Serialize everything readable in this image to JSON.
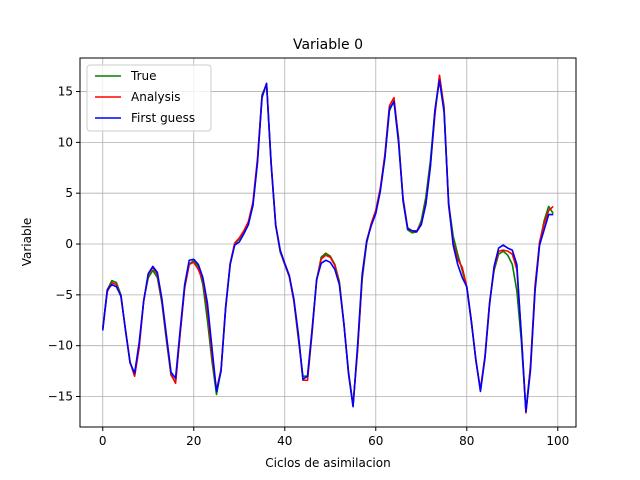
{
  "chart_data": {
    "type": "line",
    "title": "Variable 0",
    "xlabel": "Ciclos de asimilacion",
    "ylabel": "Variable",
    "xlim": [
      -5,
      104
    ],
    "ylim": [
      -18,
      18.3
    ],
    "xticks": [
      0,
      20,
      40,
      60,
      80,
      100
    ],
    "yticks": [
      -15,
      -10,
      -5,
      0,
      5,
      10,
      15
    ],
    "grid": true,
    "legend": "top-left",
    "x": [
      0,
      1,
      2,
      3,
      4,
      5,
      6,
      7,
      8,
      9,
      10,
      11,
      12,
      13,
      14,
      15,
      16,
      17,
      18,
      19,
      20,
      21,
      22,
      23,
      24,
      25,
      26,
      27,
      28,
      29,
      30,
      31,
      32,
      33,
      34,
      35,
      36,
      37,
      38,
      39,
      40,
      41,
      42,
      43,
      44,
      45,
      46,
      47,
      48,
      49,
      50,
      51,
      52,
      53,
      54,
      55,
      56,
      57,
      58,
      59,
      60,
      61,
      62,
      63,
      64,
      65,
      66,
      67,
      68,
      69,
      70,
      71,
      72,
      73,
      74,
      75,
      76,
      77,
      78,
      79,
      80,
      81,
      82,
      83,
      84,
      85,
      86,
      87,
      88,
      89,
      90,
      91,
      92,
      93,
      94,
      95,
      96,
      97,
      98,
      99
    ],
    "series": [
      {
        "name": "True",
        "color": "#008000",
        "values": [
          -8.3,
          -4.5,
          -3.6,
          -3.8,
          -5.0,
          -8.5,
          -11.6,
          -13.0,
          -10.0,
          -5.5,
          -3.3,
          -2.6,
          -3.3,
          -5.8,
          -9.5,
          -12.9,
          -13.6,
          -8.8,
          -4.3,
          -2.0,
          -1.6,
          -2.2,
          -4.0,
          -7.5,
          -11.5,
          -14.8,
          -12.4,
          -6.4,
          -2.0,
          0.0,
          0.5,
          1.2,
          2.0,
          3.8,
          8.1,
          14.7,
          15.7,
          7.8,
          1.8,
          -0.8,
          -2.0,
          -3.2,
          -5.6,
          -9.4,
          -13.0,
          -13.0,
          -8.4,
          -3.6,
          -1.3,
          -0.9,
          -1.2,
          -2.0,
          -3.7,
          -7.8,
          -12.8,
          -15.9,
          -10.4,
          -3.5,
          0.1,
          2.0,
          3.3,
          5.4,
          8.5,
          13.1,
          14.1,
          10.5,
          4.2,
          1.4,
          1.1,
          1.2,
          2.3,
          4.6,
          8.2,
          13.1,
          16.5,
          13.5,
          4.0,
          0.8,
          -1.0,
          -2.6,
          -4.3,
          -7.7,
          -11.4,
          -14.4,
          -11.1,
          -5.8,
          -2.6,
          -1.0,
          -0.7,
          -1.1,
          -2.0,
          -4.6,
          -9.6,
          -16.4,
          -12.0,
          -4.4,
          0.1,
          2.3,
          3.7,
          3.0
        ]
      },
      {
        "name": "Analysis",
        "color": "#ff0000",
        "values": [
          -8.3,
          -4.7,
          -3.8,
          -4.0,
          -5.2,
          -8.4,
          -11.6,
          -13.0,
          -10.2,
          -5.6,
          -3.0,
          -2.3,
          -3.0,
          -5.6,
          -9.3,
          -12.8,
          -13.7,
          -8.9,
          -4.3,
          -2.0,
          -1.8,
          -2.5,
          -3.6,
          -6.4,
          -10.9,
          -14.4,
          -12.3,
          -6.2,
          -1.9,
          0.1,
          0.6,
          1.3,
          2.2,
          4.1,
          8.4,
          14.5,
          15.8,
          7.9,
          1.9,
          -0.7,
          -2.0,
          -3.2,
          -5.6,
          -9.1,
          -13.4,
          -13.4,
          -8.8,
          -3.5,
          -1.5,
          -1.1,
          -1.3,
          -2.1,
          -3.9,
          -7.9,
          -12.6,
          -15.8,
          -10.5,
          -3.3,
          0.3,
          2.0,
          3.3,
          5.5,
          8.8,
          13.6,
          14.4,
          10.2,
          4.5,
          1.6,
          1.3,
          1.3,
          2.0,
          4.0,
          7.7,
          12.7,
          16.6,
          13.3,
          3.8,
          0.2,
          -1.5,
          -2.3,
          -4.2,
          -7.5,
          -11.5,
          -14.3,
          -11.0,
          -5.8,
          -2.4,
          -0.7,
          -0.6,
          -0.7,
          -1.0,
          -2.5,
          -8.9,
          -16.6,
          -12.0,
          -4.1,
          0.2,
          2.0,
          3.3,
          3.7
        ]
      },
      {
        "name": "First guess",
        "color": "#0000ff",
        "values": [
          -8.5,
          -4.5,
          -4.0,
          -4.2,
          -5.1,
          -8.5,
          -11.7,
          -12.7,
          -9.7,
          -5.6,
          -2.9,
          -2.2,
          -2.8,
          -5.4,
          -9.0,
          -12.6,
          -13.2,
          -8.5,
          -4.0,
          -1.6,
          -1.5,
          -2.0,
          -3.3,
          -5.8,
          -10.2,
          -14.5,
          -12.5,
          -6.3,
          -2.0,
          -0.1,
          0.2,
          1.0,
          1.9,
          3.8,
          8.0,
          14.4,
          15.8,
          8.0,
          1.9,
          -0.6,
          -1.9,
          -3.1,
          -5.4,
          -8.9,
          -13.3,
          -13.0,
          -8.5,
          -3.5,
          -1.9,
          -1.6,
          -1.8,
          -2.5,
          -4.0,
          -7.9,
          -12.6,
          -16.0,
          -10.0,
          -3.0,
          0.3,
          1.8,
          3.0,
          5.2,
          8.5,
          13.3,
          14.0,
          10.0,
          4.3,
          1.5,
          1.3,
          1.2,
          1.9,
          3.9,
          7.6,
          13.2,
          16.1,
          13.0,
          4.1,
          -0.1,
          -2.0,
          -3.3,
          -4.2,
          -7.6,
          -11.4,
          -14.5,
          -11.2,
          -6.0,
          -2.2,
          -0.4,
          -0.1,
          -0.4,
          -0.6,
          -2.0,
          -9.1,
          -16.5,
          -12.4,
          -4.6,
          -0.1,
          1.4,
          2.9,
          2.9
        ]
      }
    ]
  }
}
